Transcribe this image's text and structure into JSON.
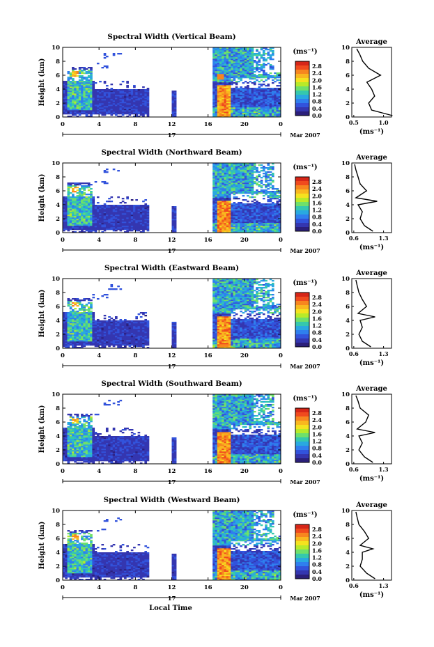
{
  "figure": {
    "xlabel": "Local Time",
    "date_label": "Mar 2007",
    "day_label": "17",
    "average_title": "Average",
    "unit_label": "(ms⁻¹)",
    "colorbar_ticks": [
      "2.8",
      "2.4",
      "2.0",
      "1.6",
      "1.2",
      "0.8",
      "0.4",
      "0.0"
    ],
    "colormap": [
      "#d62618",
      "#f04a1e",
      "#f7861f",
      "#f9b71f",
      "#f5e21f",
      "#b8ea29",
      "#6fe06a",
      "#35c8ad",
      "#29a9e0",
      "#2f7fee",
      "#3253dc",
      "#3436b0",
      "#2b1f7a"
    ]
  },
  "chart_data": [
    {
      "type": "heatmap",
      "title": "Spectral Width (Vertical Beam)",
      "ylabel": "Height (km)",
      "x": [
        0,
        4,
        8,
        12,
        16,
        20,
        0
      ],
      "xlim": [
        0,
        24
      ],
      "y": [
        0,
        2,
        4,
        6,
        8,
        10
      ],
      "ylim": [
        0,
        10
      ],
      "colorbar": {
        "range": [
          0.0,
          3.0
        ]
      },
      "profile": {
        "xlabel": "(ms⁻¹)",
        "xticks": [
          "0.5",
          "1.0"
        ],
        "height": [
          0.2,
          1,
          2,
          3,
          4,
          5,
          6,
          7,
          8,
          9,
          9.8
        ],
        "values": [
          1.15,
          0.8,
          0.75,
          0.85,
          0.8,
          0.72,
          0.95,
          0.75,
          0.65,
          0.6,
          0.55
        ]
      }
    },
    {
      "type": "heatmap",
      "title": "Spectral Width (Northward Beam)",
      "ylabel": "Height (km)",
      "x": [
        0,
        4,
        8,
        12,
        16,
        20,
        0
      ],
      "xlim": [
        0,
        24
      ],
      "y": [
        0,
        2,
        4,
        6,
        8,
        10
      ],
      "ylim": [
        0,
        10
      ],
      "colorbar": {
        "range": [
          0.0,
          3.0
        ]
      },
      "profile": {
        "xlabel": "(ms⁻¹)",
        "xticks": [
          "0.6",
          "1.3"
        ],
        "height": [
          0.2,
          1,
          2,
          3,
          4,
          4.5,
          5,
          6,
          7,
          8,
          9,
          9.8
        ],
        "values": [
          1.05,
          0.85,
          0.75,
          0.8,
          0.7,
          1.15,
          0.65,
          0.9,
          0.75,
          0.7,
          0.65,
          0.62
        ]
      }
    },
    {
      "type": "heatmap",
      "title": "Spectral Width (Eastward Beam)",
      "ylabel": "Height (km)",
      "x": [
        0,
        4,
        8,
        12,
        16,
        20,
        0
      ],
      "xlim": [
        0,
        24
      ],
      "y": [
        0,
        2,
        4,
        6,
        8,
        10
      ],
      "ylim": [
        0,
        10
      ],
      "colorbar": {
        "range": [
          0.0,
          3.0
        ]
      },
      "profile": {
        "xlabel": "(ms⁻¹)",
        "xticks": [
          "0.6",
          "1.3"
        ],
        "height": [
          0.2,
          1,
          2,
          3,
          4,
          4.5,
          5,
          6,
          7,
          8,
          9,
          9.8
        ],
        "values": [
          1.0,
          0.8,
          0.72,
          0.8,
          0.75,
          1.1,
          0.7,
          0.9,
          0.8,
          0.72,
          0.68,
          0.65
        ]
      }
    },
    {
      "type": "heatmap",
      "title": "Spectral Width (Southward Beam)",
      "ylabel": "Height (km)",
      "x": [
        0,
        4,
        8,
        12,
        16,
        20,
        0
      ],
      "xlim": [
        0,
        24
      ],
      "y": [
        0,
        2,
        4,
        6,
        8,
        10
      ],
      "ylim": [
        0,
        10
      ],
      "colorbar": {
        "range": [
          0.0,
          3.0
        ]
      },
      "profile": {
        "xlabel": "(ms⁻¹)",
        "xticks": [
          "0.6",
          "1.3"
        ],
        "height": [
          0.2,
          1,
          2,
          3,
          4,
          4.5,
          5,
          6,
          7,
          8,
          9,
          9.8
        ],
        "values": [
          1.05,
          0.85,
          0.72,
          0.8,
          0.72,
          1.1,
          0.68,
          0.88,
          0.95,
          0.75,
          0.7,
          0.65
        ]
      }
    },
    {
      "type": "heatmap",
      "title": "Spectral Width (Westward Beam)",
      "ylabel": "Height (km)",
      "x": [
        0,
        4,
        8,
        12,
        16,
        20,
        0
      ],
      "xlim": [
        0,
        24
      ],
      "y": [
        0,
        2,
        4,
        6,
        8,
        10
      ],
      "ylim": [
        0,
        10
      ],
      "colorbar": {
        "range": [
          0.0,
          3.0
        ]
      },
      "profile": {
        "xlabel": "(ms⁻¹)",
        "xticks": [
          "0.6",
          "1.3"
        ],
        "height": [
          0.2,
          1,
          2,
          3,
          4,
          4.5,
          5,
          6,
          7,
          8,
          9,
          9.8
        ],
        "values": [
          1.1,
          0.9,
          0.75,
          0.8,
          0.8,
          1.05,
          0.75,
          0.95,
          0.85,
          0.72,
          0.68,
          0.65
        ]
      }
    }
  ]
}
